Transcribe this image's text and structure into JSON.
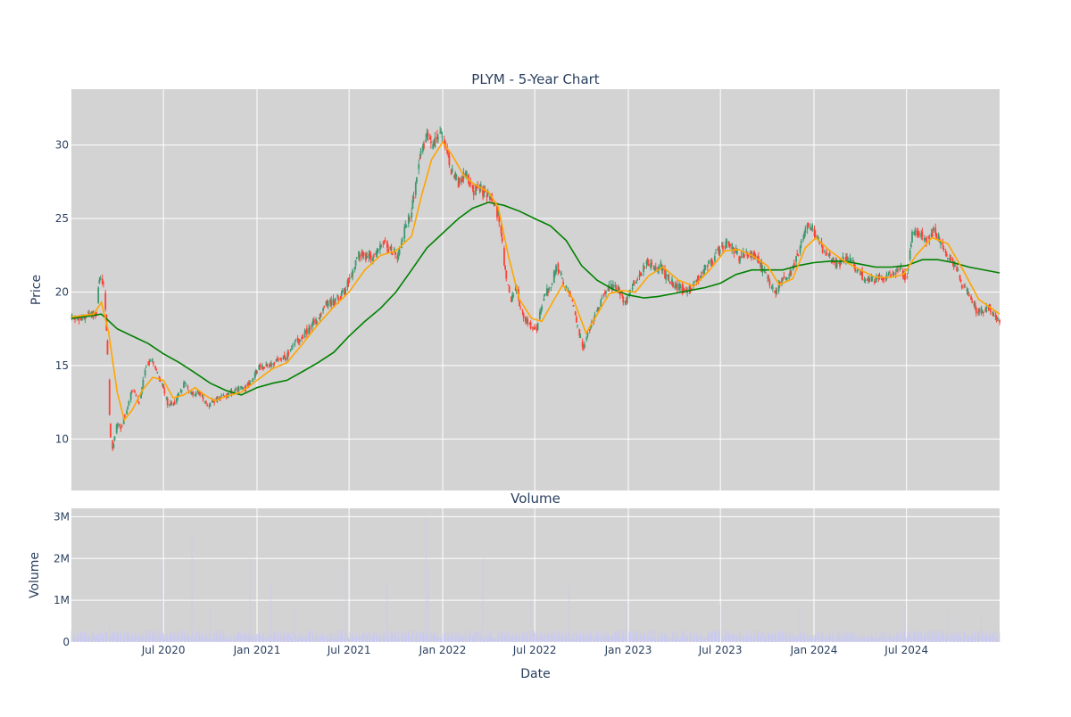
{
  "chart_data": [
    {
      "type": "candlestick",
      "title": "PLYM - 5-Year Chart",
      "ylabel": "Price",
      "ylim": [
        6.5,
        33.8
      ],
      "yticks": [
        10,
        15,
        20,
        25,
        30
      ],
      "xlim": [
        "2020-01-02",
        "2024-12-31"
      ],
      "xticks": [
        {
          "date": "2020-07-01",
          "label": "Jul 2020"
        },
        {
          "date": "2021-01-01",
          "label": "Jan 2021"
        },
        {
          "date": "2021-07-01",
          "label": "Jul 2021"
        },
        {
          "date": "2022-01-01",
          "label": "Jan 2022"
        },
        {
          "date": "2022-07-01",
          "label": "Jul 2022"
        },
        {
          "date": "2023-01-01",
          "label": "Jan 2023"
        },
        {
          "date": "2023-07-01",
          "label": "Jul 2023"
        },
        {
          "date": "2024-01-01",
          "label": "Jan 2024"
        },
        {
          "date": "2024-07-01",
          "label": "Jul 2024"
        }
      ],
      "grid": true,
      "colors": {
        "increasing": "#3d9970",
        "decreasing": "#ff4136",
        "ma_short": "#ffa500",
        "ma_long": "#008000",
        "plot_bg": "#d3d3d3"
      },
      "price_path": [
        [
          "2020-01-02",
          18.2
        ],
        [
          "2020-02-10",
          18.4
        ],
        [
          "2020-02-20",
          18.6
        ],
        [
          "2020-02-26",
          21.0
        ],
        [
          "2020-03-05",
          20.8
        ],
        [
          "2020-03-12",
          17.0
        ],
        [
          "2020-03-18",
          10.5
        ],
        [
          "2020-03-23",
          9.2
        ],
        [
          "2020-03-30",
          11.0
        ],
        [
          "2020-04-08",
          10.8
        ],
        [
          "2020-04-20",
          12.0
        ],
        [
          "2020-05-01",
          13.5
        ],
        [
          "2020-05-14",
          12.5
        ],
        [
          "2020-05-28",
          15.0
        ],
        [
          "2020-06-08",
          15.5
        ],
        [
          "2020-06-18",
          14.5
        ],
        [
          "2020-06-30",
          13.5
        ],
        [
          "2020-07-10",
          12.3
        ],
        [
          "2020-07-24",
          12.5
        ],
        [
          "2020-08-10",
          13.8
        ],
        [
          "2020-08-25",
          13.0
        ],
        [
          "2020-09-10",
          13.2
        ],
        [
          "2020-09-25",
          12.3
        ],
        [
          "2020-10-15",
          12.8
        ],
        [
          "2020-11-05",
          13.0
        ],
        [
          "2020-11-20",
          13.3
        ],
        [
          "2020-12-10",
          13.5
        ],
        [
          "2021-01-04",
          14.8
        ],
        [
          "2021-02-01",
          15.2
        ],
        [
          "2021-03-01",
          15.6
        ],
        [
          "2021-03-15",
          16.5
        ],
        [
          "2021-04-05",
          17.2
        ],
        [
          "2021-04-26",
          18.0
        ],
        [
          "2021-05-17",
          19.2
        ],
        [
          "2021-06-07",
          19.5
        ],
        [
          "2021-06-21",
          20.0
        ],
        [
          "2021-07-06",
          21.2
        ],
        [
          "2021-07-19",
          22.6
        ],
        [
          "2021-08-09",
          22.3
        ],
        [
          "2021-08-23",
          22.6
        ],
        [
          "2021-09-07",
          23.5
        ],
        [
          "2021-09-20",
          22.8
        ],
        [
          "2021-10-04",
          22.5
        ],
        [
          "2021-10-18",
          24.2
        ],
        [
          "2021-11-01",
          25.5
        ],
        [
          "2021-11-10",
          27.5
        ],
        [
          "2021-11-18",
          29.5
        ],
        [
          "2021-12-01",
          30.5
        ],
        [
          "2021-12-13",
          29.8
        ],
        [
          "2021-12-27",
          31.2
        ],
        [
          "2022-01-05",
          30.0
        ],
        [
          "2022-01-18",
          28.2
        ],
        [
          "2022-02-01",
          27.5
        ],
        [
          "2022-02-15",
          28.2
        ],
        [
          "2022-03-01",
          26.8
        ],
        [
          "2022-03-15",
          27.2
        ],
        [
          "2022-03-30",
          26.5
        ],
        [
          "2022-04-12",
          26.0
        ],
        [
          "2022-04-25",
          24.5
        ],
        [
          "2022-05-05",
          21.0
        ],
        [
          "2022-05-16",
          19.5
        ],
        [
          "2022-05-25",
          20.5
        ],
        [
          "2022-06-06",
          18.5
        ],
        [
          "2022-06-20",
          17.8
        ],
        [
          "2022-07-05",
          17.5
        ],
        [
          "2022-07-18",
          19.5
        ],
        [
          "2022-08-01",
          20.5
        ],
        [
          "2022-08-15",
          21.8
        ],
        [
          "2022-08-29",
          20.3
        ],
        [
          "2022-09-12",
          19.5
        ],
        [
          "2022-09-26",
          17.0
        ],
        [
          "2022-10-05",
          16.3
        ],
        [
          "2022-10-17",
          17.5
        ],
        [
          "2022-10-31",
          18.8
        ],
        [
          "2022-11-14",
          20.0
        ],
        [
          "2022-11-28",
          20.3
        ],
        [
          "2022-12-12",
          20.2
        ],
        [
          "2022-12-27",
          19.2
        ],
        [
          "2023-01-09",
          20.5
        ],
        [
          "2023-01-23",
          21.0
        ],
        [
          "2023-02-06",
          22.2
        ],
        [
          "2023-02-21",
          21.5
        ],
        [
          "2023-03-06",
          21.8
        ],
        [
          "2023-03-20",
          20.8
        ],
        [
          "2023-04-03",
          20.5
        ],
        [
          "2023-04-17",
          20.2
        ],
        [
          "2023-05-01",
          20.2
        ],
        [
          "2023-05-15",
          20.8
        ],
        [
          "2023-05-30",
          21.5
        ],
        [
          "2023-06-12",
          22.0
        ],
        [
          "2023-06-26",
          22.8
        ],
        [
          "2023-07-10",
          23.3
        ],
        [
          "2023-07-24",
          23.0
        ],
        [
          "2023-08-07",
          22.3
        ],
        [
          "2023-08-21",
          22.8
        ],
        [
          "2023-09-05",
          22.5
        ],
        [
          "2023-09-18",
          21.8
        ],
        [
          "2023-10-02",
          20.8
        ],
        [
          "2023-10-16",
          20.0
        ],
        [
          "2023-10-30",
          20.8
        ],
        [
          "2023-11-13",
          21.0
        ],
        [
          "2023-11-27",
          22.3
        ],
        [
          "2023-12-11",
          23.8
        ],
        [
          "2023-12-20",
          24.8
        ],
        [
          "2024-01-03",
          24.0
        ],
        [
          "2024-01-17",
          23.0
        ],
        [
          "2024-02-01",
          22.3
        ],
        [
          "2024-02-15",
          21.8
        ],
        [
          "2024-03-01",
          22.2
        ],
        [
          "2024-03-15",
          22.0
        ],
        [
          "2024-04-01",
          21.2
        ],
        [
          "2024-04-15",
          20.8
        ],
        [
          "2024-05-01",
          20.8
        ],
        [
          "2024-05-15",
          21.0
        ],
        [
          "2024-06-03",
          21.2
        ],
        [
          "2024-06-17",
          21.5
        ],
        [
          "2024-07-01",
          21.0
        ],
        [
          "2024-07-12",
          24.0
        ],
        [
          "2024-07-26",
          24.2
        ],
        [
          "2024-08-09",
          23.5
        ],
        [
          "2024-08-23",
          24.2
        ],
        [
          "2024-09-06",
          23.5
        ],
        [
          "2024-09-20",
          22.5
        ],
        [
          "2024-10-04",
          21.8
        ],
        [
          "2024-10-18",
          20.5
        ],
        [
          "2024-11-01",
          19.8
        ],
        [
          "2024-11-15",
          18.8
        ],
        [
          "2024-11-29",
          18.7
        ],
        [
          "2024-12-13",
          18.9
        ],
        [
          "2024-12-31",
          17.8
        ]
      ],
      "ma_short": [
        [
          "2020-01-02",
          18.3
        ],
        [
          "2020-02-15",
          18.5
        ],
        [
          "2020-03-01",
          19.3
        ],
        [
          "2020-03-15",
          17.3
        ],
        [
          "2020-04-01",
          13.2
        ],
        [
          "2020-04-15",
          11.3
        ],
        [
          "2020-05-01",
          12.0
        ],
        [
          "2020-05-20",
          13.3
        ],
        [
          "2020-06-10",
          14.2
        ],
        [
          "2020-07-01",
          14.0
        ],
        [
          "2020-07-20",
          12.8
        ],
        [
          "2020-08-10",
          13.0
        ],
        [
          "2020-09-01",
          13.5
        ],
        [
          "2020-09-20",
          13.0
        ],
        [
          "2020-10-10",
          12.6
        ],
        [
          "2020-11-01",
          12.9
        ],
        [
          "2020-12-01",
          13.2
        ],
        [
          "2021-01-01",
          14.0
        ],
        [
          "2021-02-01",
          14.8
        ],
        [
          "2021-03-01",
          15.2
        ],
        [
          "2021-04-01",
          16.5
        ],
        [
          "2021-05-01",
          17.8
        ],
        [
          "2021-06-01",
          19.0
        ],
        [
          "2021-07-01",
          20.0
        ],
        [
          "2021-08-01",
          21.5
        ],
        [
          "2021-09-01",
          22.5
        ],
        [
          "2021-10-01",
          22.8
        ],
        [
          "2021-11-01",
          23.8
        ],
        [
          "2021-11-20",
          26.5
        ],
        [
          "2021-12-10",
          29.0
        ],
        [
          "2022-01-01",
          30.2
        ],
        [
          "2022-01-20",
          29.3
        ],
        [
          "2022-02-10",
          28.0
        ],
        [
          "2022-03-01",
          27.4
        ],
        [
          "2022-04-01",
          26.8
        ],
        [
          "2022-04-20",
          25.8
        ],
        [
          "2022-05-10",
          22.5
        ],
        [
          "2022-06-01",
          19.5
        ],
        [
          "2022-06-25",
          18.2
        ],
        [
          "2022-07-15",
          18.0
        ],
        [
          "2022-08-05",
          19.3
        ],
        [
          "2022-08-25",
          20.5
        ],
        [
          "2022-09-15",
          19.5
        ],
        [
          "2022-10-10",
          17.2
        ],
        [
          "2022-11-01",
          18.5
        ],
        [
          "2022-11-25",
          19.9
        ],
        [
          "2022-12-20",
          20.1
        ],
        [
          "2023-01-15",
          20.0
        ],
        [
          "2023-02-10",
          21.1
        ],
        [
          "2023-03-10",
          21.7
        ],
        [
          "2023-04-10",
          20.8
        ],
        [
          "2023-05-10",
          20.4
        ],
        [
          "2023-06-10",
          21.5
        ],
        [
          "2023-07-10",
          22.8
        ],
        [
          "2023-08-05",
          22.9
        ],
        [
          "2023-09-01",
          22.5
        ],
        [
          "2023-10-01",
          21.8
        ],
        [
          "2023-10-25",
          20.5
        ],
        [
          "2023-11-20",
          20.9
        ],
        [
          "2023-12-15",
          23.0
        ],
        [
          "2024-01-05",
          23.7
        ],
        [
          "2024-02-01",
          22.8
        ],
        [
          "2024-03-01",
          22.1
        ],
        [
          "2024-04-01",
          21.5
        ],
        [
          "2024-05-01",
          21.0
        ],
        [
          "2024-06-01",
          21.0
        ],
        [
          "2024-06-25",
          21.2
        ],
        [
          "2024-07-20",
          22.5
        ],
        [
          "2024-08-20",
          23.7
        ],
        [
          "2024-09-20",
          23.3
        ],
        [
          "2024-10-20",
          21.5
        ],
        [
          "2024-11-20",
          19.5
        ],
        [
          "2024-12-31",
          18.5
        ]
      ],
      "ma_long": [
        [
          "2020-01-02",
          18.2
        ],
        [
          "2020-03-01",
          18.5
        ],
        [
          "2020-04-01",
          17.5
        ],
        [
          "2020-05-01",
          17.0
        ],
        [
          "2020-06-01",
          16.5
        ],
        [
          "2020-07-01",
          15.8
        ],
        [
          "2020-08-01",
          15.2
        ],
        [
          "2020-09-01",
          14.5
        ],
        [
          "2020-10-01",
          13.8
        ],
        [
          "2020-11-01",
          13.3
        ],
        [
          "2020-12-01",
          13.0
        ],
        [
          "2021-01-01",
          13.5
        ],
        [
          "2021-02-01",
          13.8
        ],
        [
          "2021-03-01",
          14.0
        ],
        [
          "2021-04-01",
          14.6
        ],
        [
          "2021-05-01",
          15.2
        ],
        [
          "2021-06-01",
          15.9
        ],
        [
          "2021-07-01",
          17.0
        ],
        [
          "2021-08-01",
          18.0
        ],
        [
          "2021-09-01",
          18.9
        ],
        [
          "2021-10-01",
          20.0
        ],
        [
          "2021-11-01",
          21.5
        ],
        [
          "2021-12-01",
          23.0
        ],
        [
          "2022-01-01",
          24.0
        ],
        [
          "2022-02-01",
          25.0
        ],
        [
          "2022-03-01",
          25.7
        ],
        [
          "2022-04-01",
          26.1
        ],
        [
          "2022-05-01",
          25.9
        ],
        [
          "2022-06-01",
          25.5
        ],
        [
          "2022-07-01",
          25.0
        ],
        [
          "2022-08-01",
          24.5
        ],
        [
          "2022-09-01",
          23.5
        ],
        [
          "2022-10-01",
          21.8
        ],
        [
          "2022-11-01",
          20.8
        ],
        [
          "2022-12-01",
          20.2
        ],
        [
          "2023-01-01",
          19.8
        ],
        [
          "2023-02-01",
          19.6
        ],
        [
          "2023-03-01",
          19.7
        ],
        [
          "2023-04-01",
          19.9
        ],
        [
          "2023-05-01",
          20.1
        ],
        [
          "2023-06-01",
          20.3
        ],
        [
          "2023-07-01",
          20.6
        ],
        [
          "2023-08-01",
          21.2
        ],
        [
          "2023-09-01",
          21.5
        ],
        [
          "2023-10-01",
          21.5
        ],
        [
          "2023-11-01",
          21.5
        ],
        [
          "2023-12-01",
          21.8
        ],
        [
          "2024-01-01",
          22.0
        ],
        [
          "2024-02-01",
          22.1
        ],
        [
          "2024-03-01",
          22.1
        ],
        [
          "2024-04-01",
          21.9
        ],
        [
          "2024-05-01",
          21.7
        ],
        [
          "2024-06-01",
          21.7
        ],
        [
          "2024-07-01",
          21.8
        ],
        [
          "2024-08-01",
          22.2
        ],
        [
          "2024-09-01",
          22.2
        ],
        [
          "2024-10-01",
          22.0
        ],
        [
          "2024-11-01",
          21.7
        ],
        [
          "2024-12-31",
          21.3
        ]
      ]
    },
    {
      "type": "bar",
      "title": "Volume",
      "xlabel": "Date",
      "ylabel": "Volume",
      "ylim": [
        0,
        3200000
      ],
      "yticks": [
        {
          "value": 0,
          "label": "0"
        },
        {
          "value": 1000000,
          "label": "1M"
        },
        {
          "value": 2000000,
          "label": "2M"
        },
        {
          "value": 3000000,
          "label": "3M"
        }
      ],
      "colors": {
        "bar": "#c9c9f2"
      },
      "base_volume": 180000,
      "volume_spikes": [
        [
          "2020-03-17",
          500000
        ],
        [
          "2020-06-29",
          1900000
        ],
        [
          "2020-08-26",
          2500000
        ],
        [
          "2020-09-30",
          850000
        ],
        [
          "2020-12-18",
          2000000
        ],
        [
          "2021-01-28",
          1400000
        ],
        [
          "2021-03-15",
          800000
        ],
        [
          "2021-06-25",
          1900000
        ],
        [
          "2021-09-14",
          1400000
        ],
        [
          "2021-11-29",
          3000000
        ],
        [
          "2021-12-03",
          1800000
        ],
        [
          "2022-03-21",
          2000000
        ],
        [
          "2022-06-24",
          1000000
        ],
        [
          "2022-09-06",
          1300000
        ],
        [
          "2022-12-28",
          900000
        ],
        [
          "2023-06-30",
          900000
        ],
        [
          "2023-12-04",
          800000
        ],
        [
          "2024-06-28",
          850000
        ],
        [
          "2024-09-20",
          800000
        ],
        [
          "2024-11-25",
          700000
        ]
      ]
    }
  ]
}
